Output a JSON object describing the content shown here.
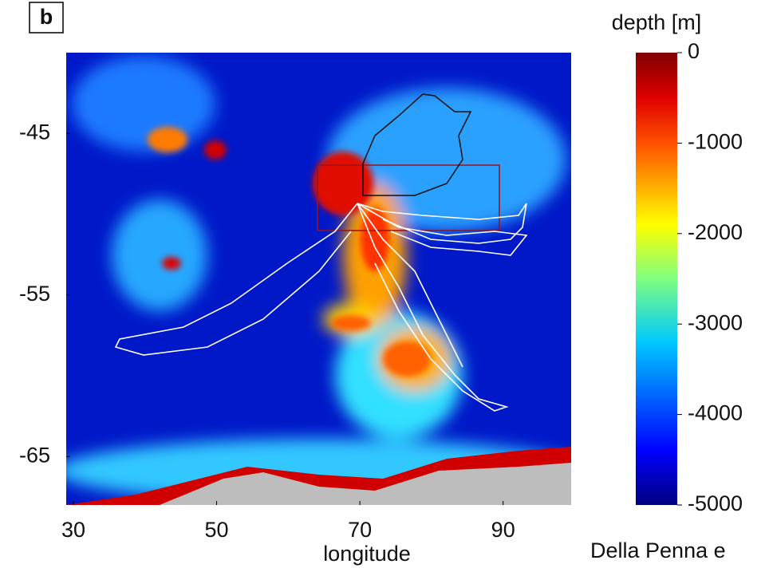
{
  "chart_data": {
    "type": "map",
    "panel_label": "b",
    "x_label": "longitude",
    "xlim": [
      29,
      99.5
    ],
    "xticks": [
      30,
      50,
      70,
      90
    ],
    "ylim": [
      -68,
      -40
    ],
    "yticks": [
      -45,
      -55,
      -65
    ],
    "colorbar": {
      "title": "depth [m]",
      "lim": [
        -5000,
        0
      ],
      "ticks": [
        0,
        -1000,
        -2000,
        -3000,
        -4000,
        -5000
      ]
    },
    "credit": "Della Penna e"
  }
}
